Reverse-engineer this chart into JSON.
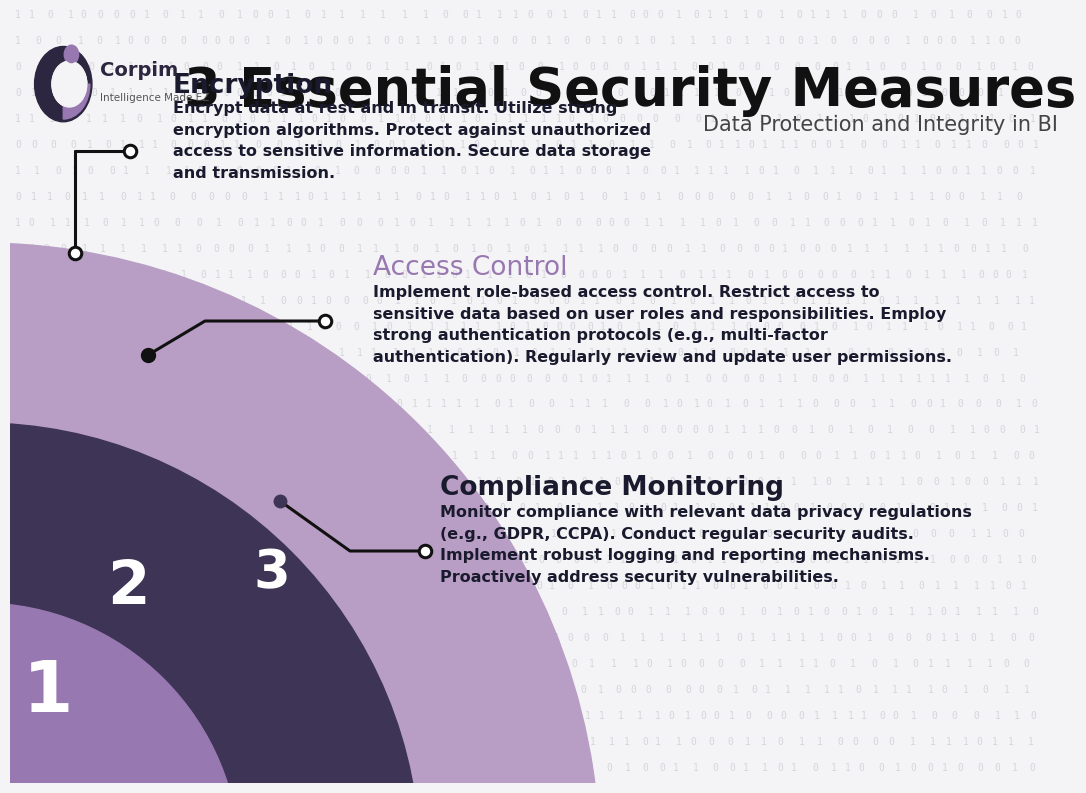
{
  "title": "3 Essential Security Measures",
  "subtitle": "Data Protection and Integrity in BI",
  "background_color": "#f4f4f6",
  "binary_color": "#c8c8d0",
  "title_color": "#111111",
  "subtitle_color": "#444444",
  "circle_colors": [
    "#b89ec4",
    "#3d3456",
    "#9878b0"
  ],
  "numbers": [
    "1",
    "2",
    "3"
  ],
  "number_color": "#ffffff",
  "enc_title": "Encryption",
  "enc_title_color": "#1a1a2e",
  "enc_body": "Encrypt data at rest and in transit. Utilize strong\nencryption algorithms. Protect against unauthorized\naccess to sensitive information. Secure data storage\nand transmission.",
  "acc_title": "Access Control",
  "acc_title_color": "#9878b0",
  "acc_body": "Implement role-based access control. Restrict access to\nsensitive data based on user roles and responsibilities. Employ\nstrong authentication protocols (e.g., multi-factor\nauthentication). Regularly review and update user permissions.",
  "comp_title": "Compliance Monitoring",
  "comp_title_color": "#1a1a2e",
  "comp_body": "Monitor compliance with relevant data privacy regulations\n(e.g., GDPR, CCPA). Conduct regular security audits.\nImplement robust logging and reporting mechanisms.\nProactively address security vulnerabilities.",
  "body_color": "#1a1a2e",
  "connector_color": "#111111"
}
